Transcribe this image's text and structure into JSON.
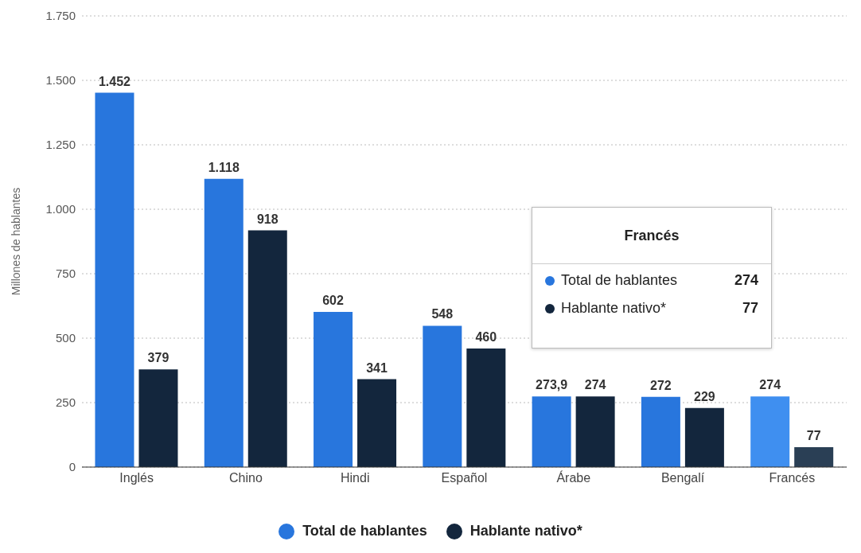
{
  "chart_data": {
    "type": "bar",
    "ylabel": "Millones de hablantes",
    "categories": [
      "Inglés",
      "Chino",
      "Hindi",
      "Español",
      "Árabe",
      "Bengalí",
      "Francés"
    ],
    "series": [
      {
        "name": "Total de hablantes",
        "color": "#2876dd",
        "colors": [
          "#2876dd",
          "#2876dd",
          "#2876dd",
          "#2876dd",
          "#2876dd",
          "#2876dd",
          "#3f8ff0"
        ],
        "values": [
          1452,
          1118,
          602,
          548,
          273.9,
          272,
          274
        ],
        "value_labels": [
          "1.452",
          "1.118",
          "602",
          "548",
          "273,9",
          "272",
          "274"
        ]
      },
      {
        "name": "Hablante nativo*",
        "color": "#13263d",
        "colors": [
          "#13263d",
          "#13263d",
          "#13263d",
          "#13263d",
          "#13263d",
          "#13263d",
          "#2a3f55"
        ],
        "values": [
          379,
          918,
          341,
          460,
          274,
          229,
          77
        ],
        "value_labels": [
          "379",
          "918",
          "341",
          "460",
          "274",
          "229",
          "77"
        ]
      }
    ],
    "ylim": [
      0,
      1750
    ],
    "yticks": [
      0,
      {
        "value": 250,
        "label": "250"
      },
      {
        "value": 500,
        "label": "500"
      },
      {
        "value": 750,
        "label": "750"
      },
      {
        "value": 1000,
        "label": "1.000"
      },
      {
        "value": 1250,
        "label": "1.250"
      },
      {
        "value": 1500,
        "label": "1.500"
      },
      {
        "value": 1750,
        "label": "1.750"
      }
    ],
    "grid": "y",
    "legend": "bottom",
    "annotations": [
      "Francés",
      "Total de hablantes",
      "274",
      "Hablante nativo*",
      "77"
    ]
  }
}
